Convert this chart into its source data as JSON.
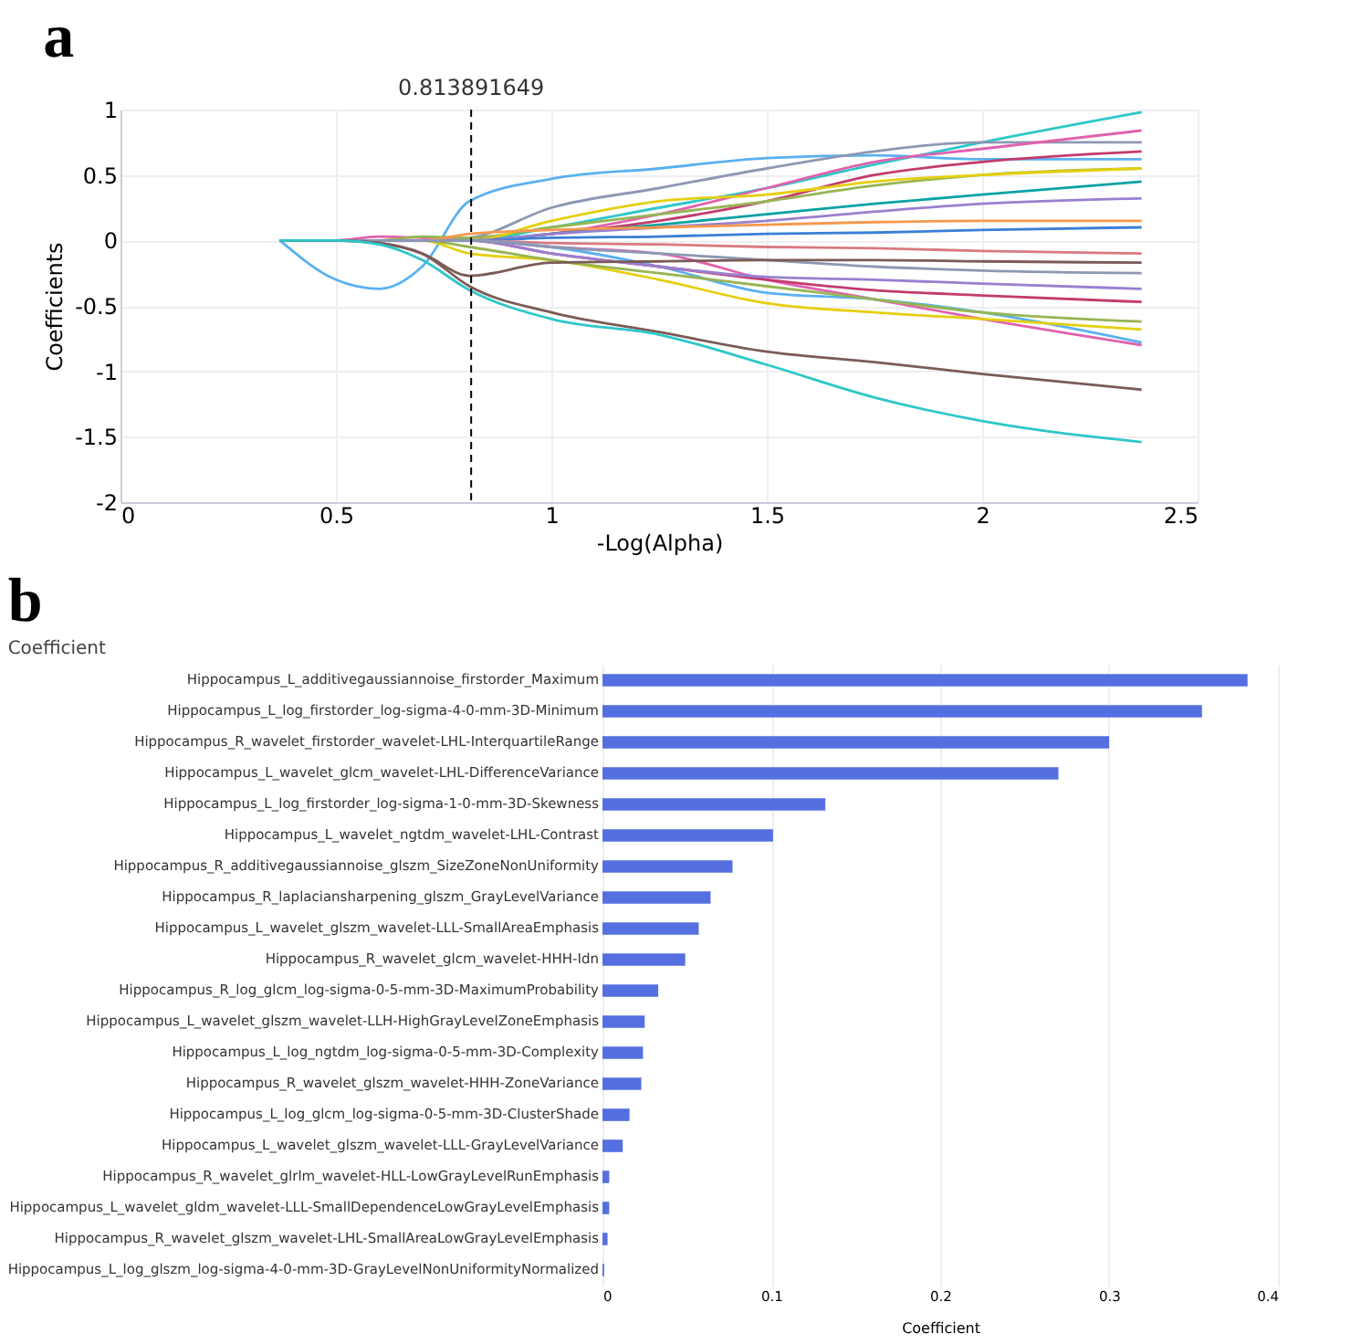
{
  "chart_data": [
    {
      "type": "line",
      "title": "a",
      "xlabel": "-Log(Alpha)",
      "ylabel": "Coefficients",
      "x": [
        0.37,
        0.5,
        0.6,
        0.7,
        0.81,
        1.0,
        1.25,
        1.5,
        1.75,
        2.0,
        2.37
      ],
      "xlim": [
        0,
        2.5
      ],
      "xticks": [
        0,
        0.5,
        1,
        1.5,
        2,
        2.5
      ],
      "ylim": [
        -2,
        1
      ],
      "yticks": [
        -2,
        -1.5,
        -1,
        -0.5,
        0,
        0.5,
        1
      ],
      "grid": true,
      "line_style": "solid",
      "marker": "none",
      "series": [
        {
          "color": "#2ec7c9",
          "values": [
            0,
            0,
            0,
            0,
            0.0,
            0.1,
            0.25,
            0.4,
            0.58,
            0.75,
            0.98
          ]
        },
        {
          "color": "#5ab1ef",
          "values": [
            0,
            -0.3,
            -0.37,
            -0.2,
            0.3,
            0.47,
            0.55,
            0.63,
            0.65,
            0.62,
            0.62
          ]
        },
        {
          "color": "#8d98b3",
          "values": [
            0,
            0,
            0,
            0,
            0.02,
            0.25,
            0.4,
            0.55,
            0.68,
            0.75,
            0.75
          ]
        },
        {
          "color": "#e062ae",
          "values": [
            0,
            0,
            0.03,
            0.02,
            0,
            0.05,
            0.2,
            0.4,
            0.6,
            0.7,
            0.84
          ]
        },
        {
          "color": "#c23b6e",
          "values": [
            0,
            0,
            0,
            0,
            0,
            0.05,
            0.15,
            0.3,
            0.5,
            0.6,
            0.68
          ]
        },
        {
          "color": "#97b552",
          "values": [
            0,
            0,
            0,
            0.03,
            0.02,
            0.1,
            0.2,
            0.3,
            0.42,
            0.5,
            0.55
          ]
        },
        {
          "color": "#e5cf0d",
          "values": [
            null,
            null,
            0,
            0,
            0,
            0.15,
            0.3,
            0.35,
            0.45,
            0.5,
            0.55
          ]
        },
        {
          "color": "#07a2a4",
          "values": [
            0,
            0,
            0,
            0,
            0,
            0.05,
            0.12,
            0.2,
            0.28,
            0.35,
            0.45
          ]
        },
        {
          "color": "#9a7fd1",
          "values": [
            0,
            0,
            0,
            0,
            0,
            0.05,
            0.1,
            0.15,
            0.22,
            0.28,
            0.32
          ]
        },
        {
          "color": "#f5994e",
          "values": [
            null,
            null,
            0,
            0,
            0.05,
            0.08,
            0.1,
            0.12,
            0.14,
            0.15,
            0.15
          ]
        },
        {
          "color": "#3a7fd5",
          "values": [
            0,
            0,
            0,
            0,
            0,
            0.02,
            0.03,
            0.05,
            0.06,
            0.08,
            0.1
          ]
        },
        {
          "color": "#d87a80",
          "values": [
            0,
            0,
            0,
            0,
            0,
            -0.02,
            -0.03,
            -0.05,
            -0.06,
            -0.08,
            -0.1
          ]
        },
        {
          "color": "#e062ae",
          "values": [
            0,
            0,
            0,
            0,
            0,
            -0.05,
            -0.1,
            -0.3,
            -0.45,
            -0.6,
            -0.8
          ]
        },
        {
          "color": "#5ab1ef",
          "values": [
            0,
            0,
            0,
            0,
            0,
            -0.05,
            -0.2,
            -0.4,
            -0.45,
            -0.55,
            -0.78
          ]
        },
        {
          "color": "#e5cf0d",
          "values": [
            null,
            null,
            0,
            0,
            -0.1,
            -0.15,
            -0.3,
            -0.48,
            -0.55,
            -0.6,
            -0.68
          ]
        },
        {
          "color": "#97b552",
          "values": [
            0,
            0,
            0,
            0,
            -0.05,
            -0.15,
            -0.25,
            -0.35,
            -0.45,
            -0.55,
            -0.62
          ]
        },
        {
          "color": "#c23b6e",
          "values": [
            0,
            0,
            0,
            0,
            0,
            -0.1,
            -0.2,
            -0.3,
            -0.38,
            -0.42,
            -0.47
          ]
        },
        {
          "color": "#9a7fd1",
          "values": [
            0,
            0,
            0,
            0,
            0,
            -0.1,
            -0.2,
            -0.28,
            -0.3,
            -0.33,
            -0.37
          ]
        },
        {
          "color": "#8d98b3",
          "values": [
            0,
            0,
            0,
            0,
            0,
            -0.05,
            -0.1,
            -0.15,
            -0.2,
            -0.23,
            -0.25
          ]
        },
        {
          "color": "#7b5b57",
          "values": [
            0,
            0,
            -0.02,
            -0.1,
            -0.27,
            -0.17,
            -0.16,
            -0.15,
            -0.15,
            -0.16,
            -0.17
          ]
        },
        {
          "color": "#7b5b57",
          "values": [
            0,
            0,
            -0.02,
            -0.1,
            -0.35,
            -0.55,
            -0.7,
            -0.85,
            -0.93,
            -1.02,
            -1.14
          ]
        },
        {
          "color": "#2ec7c9",
          "values": [
            0,
            0,
            -0.03,
            -0.15,
            -0.38,
            -0.6,
            -0.72,
            -0.95,
            -1.2,
            -1.38,
            -1.54
          ]
        }
      ],
      "ref_lines": [
        {
          "axis": "x",
          "value": 0.813891649,
          "label": "0.813891649",
          "color": "#000000",
          "line_style": "dashed"
        }
      ]
    },
    {
      "type": "bar",
      "title": "b",
      "subtitle": "Coefficient",
      "xlabel": "Coefficient",
      "orientation": "horizontal",
      "color": "#5470e0",
      "xlim": [
        0,
        0.4
      ],
      "xticks": [
        0,
        0.1,
        0.2,
        0.3,
        0.4
      ],
      "grid": "x",
      "categories": [
        "Hippocampus_L_additivegaussiannoise_firstorder_Maximum",
        "Hippocampus_L_log_firstorder_log-sigma-4-0-mm-3D-Minimum",
        "Hippocampus_R_wavelet_firstorder_wavelet-LHL-InterquartileRange",
        "Hippocampus_L_wavelet_glcm_wavelet-LHL-DifferenceVariance",
        "Hippocampus_L_log_firstorder_log-sigma-1-0-mm-3D-Skewness",
        "Hippocampus_L_wavelet_ngtdm_wavelet-LHL-Contrast",
        "Hippocampus_R_additivegaussiannoise_glszm_SizeZoneNonUniformity",
        "Hippocampus_R_laplaciansharpening_glszm_GrayLevelVariance",
        "Hippocampus_L_wavelet_glszm_wavelet-LLL-SmallAreaEmphasis",
        "Hippocampus_R_wavelet_glcm_wavelet-HHH-Idn",
        "Hippocampus_R_log_glcm_log-sigma-0-5-mm-3D-MaximumProbability",
        "Hippocampus_L_wavelet_glszm_wavelet-LLH-HighGrayLevelZoneEmphasis",
        "Hippocampus_L_log_ngtdm_log-sigma-0-5-mm-3D-Complexity",
        "Hippocampus_R_wavelet_glszm_wavelet-HHH-ZoneVariance",
        "Hippocampus_L_log_glcm_log-sigma-0-5-mm-3D-ClusterShade",
        "Hippocampus_L_wavelet_glszm_wavelet-LLL-GrayLevelVariance",
        "Hippocampus_R_wavelet_glrlm_wavelet-HLL-LowGrayLevelRunEmphasis",
        "Hippocampus_L_wavelet_gldm_wavelet-LLL-SmallDependenceLowGrayLevelEmphasis",
        "Hippocampus_R_wavelet_glszm_wavelet-LHL-SmallAreaLowGrayLevelEmphasis",
        "Hippocampus_L_log_glszm_log-sigma-4-0-mm-3D-GrayLevelNonUniformityNormalized"
      ],
      "values": [
        0.382,
        0.355,
        0.3,
        0.27,
        0.132,
        0.101,
        0.077,
        0.064,
        0.057,
        0.049,
        0.033,
        0.025,
        0.024,
        0.023,
        0.016,
        0.012,
        0.004,
        0.004,
        0.003,
        0.001
      ]
    }
  ]
}
